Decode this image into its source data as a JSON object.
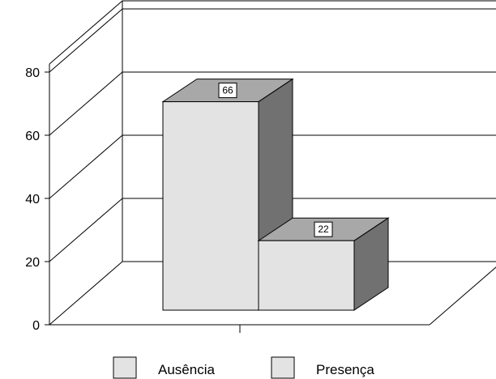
{
  "chart_data": {
    "type": "bar",
    "style": "3d",
    "series": [
      {
        "name": "Ausência",
        "value": 66
      },
      {
        "name": "Presença",
        "value": 22
      }
    ],
    "ylim": [
      0,
      80
    ],
    "yticks": [
      0,
      20,
      40,
      60,
      80
    ],
    "grid": true,
    "legend_position": "bottom",
    "colors": {
      "front": "#e3e3e3",
      "top": "#a8a8a8",
      "side": "#717171",
      "grid": "#000000"
    }
  }
}
